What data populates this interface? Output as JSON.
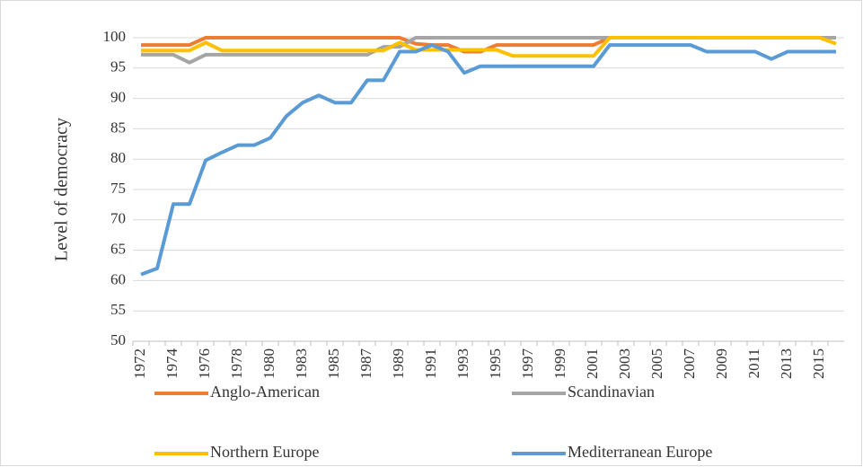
{
  "chart_data": {
    "type": "line",
    "y_label": "Level of democracy",
    "categories": [
      "1972",
      null,
      "1974",
      null,
      "1976",
      null,
      "1978",
      null,
      "1980",
      null,
      "1983",
      null,
      "1985",
      null,
      "1987",
      null,
      "1989",
      null,
      "1991",
      null,
      "1993",
      null,
      "1995",
      null,
      "1997",
      null,
      "1999",
      null,
      "2001",
      null,
      "2003",
      null,
      "2005",
      null,
      "2007",
      null,
      "2009",
      null,
      "2011",
      null,
      "2013",
      null,
      "2015",
      null
    ],
    "series": [
      {
        "name": "Anglo-American",
        "color": "#ED7D31",
        "values": [
          98.8,
          98.8,
          98.8,
          98.8,
          100,
          100,
          100,
          100,
          100,
          100,
          100,
          100,
          100,
          100,
          100,
          100,
          100,
          99,
          98.8,
          98.8,
          97.7,
          97.7,
          98.8,
          98.8,
          98.8,
          98.8,
          98.8,
          98.8,
          98.8,
          100,
          100,
          100,
          100,
          100,
          100,
          100,
          100,
          100,
          100,
          100,
          100,
          100,
          100,
          100
        ]
      },
      {
        "name": "Scandinavian",
        "color": "#A5A5A5",
        "values": [
          97.2,
          97.2,
          97.2,
          95.9,
          97.2,
          97.2,
          97.2,
          97.2,
          97.2,
          97.2,
          97.2,
          97.2,
          97.2,
          97.2,
          97.2,
          98.5,
          98.5,
          100,
          100,
          100,
          100,
          100,
          100,
          100,
          100,
          100,
          100,
          100,
          100,
          100,
          100,
          100,
          100,
          100,
          100,
          100,
          100,
          100,
          100,
          100,
          100,
          100,
          100,
          100
        ]
      },
      {
        "name": "Northern Europe",
        "color": "#FFC000",
        "values": [
          97.9,
          97.9,
          97.9,
          97.9,
          99.2,
          97.9,
          97.9,
          97.9,
          97.9,
          97.9,
          97.9,
          97.9,
          97.9,
          97.9,
          97.9,
          97.9,
          99.2,
          98,
          98,
          98,
          98,
          98,
          98,
          97,
          97,
          97,
          97,
          97,
          97,
          100,
          100,
          100,
          100,
          100,
          100,
          100,
          100,
          100,
          100,
          100,
          100,
          100,
          100,
          99
        ]
      },
      {
        "name": "Mediterranean Europe",
        "color": "#5B9BD5",
        "values": [
          61,
          62,
          72.6,
          72.6,
          79.8,
          81.1,
          82.3,
          82.3,
          83.5,
          87.1,
          89.3,
          90.5,
          89.3,
          89.3,
          93,
          93,
          97.7,
          97.7,
          98.8,
          97.7,
          94.2,
          95.3,
          95.3,
          95.3,
          95.3,
          95.3,
          95.3,
          95.3,
          95.3,
          98.8,
          98.8,
          98.8,
          98.8,
          98.8,
          98.8,
          97.7,
          97.7,
          97.7,
          97.7,
          96.5,
          97.7,
          97.7,
          97.7,
          97.7
        ]
      }
    ],
    "ylim": [
      50,
      100
    ],
    "yticks": [
      50,
      55,
      60,
      65,
      70,
      75,
      80,
      85,
      90,
      95,
      100
    ],
    "grid": true
  }
}
